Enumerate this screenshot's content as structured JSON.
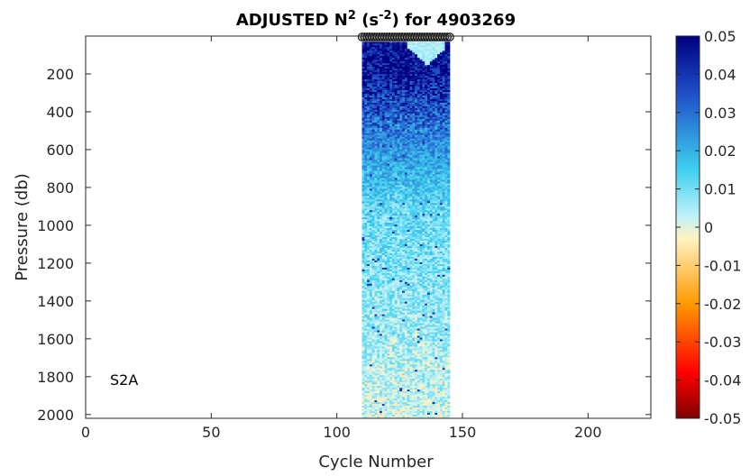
{
  "chart_data": {
    "type": "heatmap",
    "title": {
      "prefix": "ADJUSTED N",
      "superscript": "2",
      "middle": " (s",
      "unit_superscript": "-2",
      "suffix": ") for 4903269"
    },
    "xlabel": "Cycle Number",
    "ylabel": "Pressure (db)",
    "xlim": [
      0,
      225
    ],
    "ylim": [
      2020,
      0
    ],
    "y_reversed": true,
    "x_ticks": [
      0,
      50,
      100,
      150,
      200
    ],
    "y_ticks": [
      200,
      400,
      600,
      800,
      1000,
      1200,
      1400,
      1600,
      1800,
      2000
    ],
    "data_extent": {
      "cycle_min": 110,
      "cycle_max": 145,
      "pressure_min": 30,
      "pressure_max": 2020
    },
    "colorbar": {
      "min": -0.05,
      "max": 0.05,
      "ticks": [
        "0.05",
        "0.04",
        "0.03",
        "0.02",
        "0.01",
        "0",
        "-0.01",
        "-0.02",
        "-0.03",
        "-0.04",
        "-0.05"
      ],
      "colors": [
        "#7f0000",
        "#ff0000",
        "#ff9900",
        "#fff3bf",
        "#bff1f9",
        "#3fd0f0",
        "#1f4fc8",
        "#00007f"
      ]
    },
    "annotation": "S2A"
  }
}
